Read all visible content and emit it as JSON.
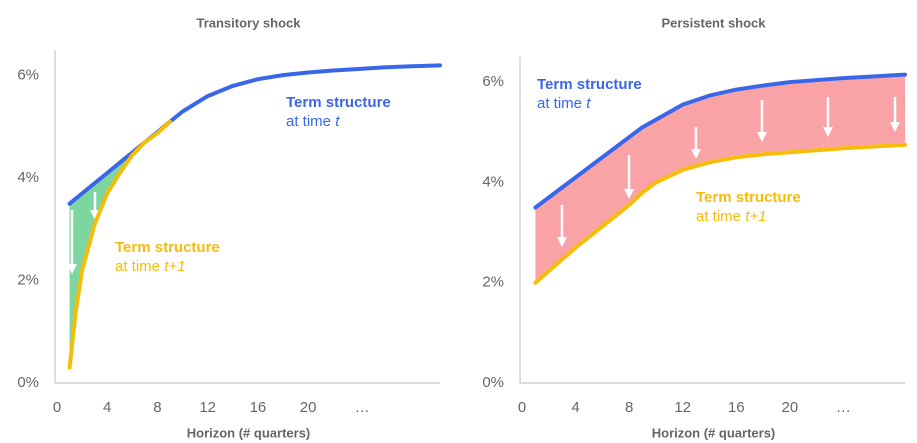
{
  "chart_data": [
    {
      "type": "line",
      "title": "Transitory shock",
      "x_label": "Horizon (# quarters)",
      "xlim": [
        0,
        30.5
      ],
      "xticks": [
        0,
        4,
        8,
        12,
        16,
        20,
        {
          "value": 24.3,
          "label": "…"
        }
      ],
      "ylim": [
        0,
        6.5
      ],
      "yticks": [
        {
          "value": 0,
          "label": "0%"
        },
        {
          "value": 2,
          "label": "2%"
        },
        {
          "value": 4,
          "label": "4%"
        },
        {
          "value": 6,
          "label": "6%"
        }
      ],
      "fill_color": "#7dd6a0",
      "series": [
        {
          "name": "Term structure",
          "note": "at time ",
          "var": "t",
          "color": "#3a66e8",
          "x": [
            1,
            2,
            3,
            4,
            5,
            6,
            7,
            8,
            9,
            10,
            12,
            14,
            16,
            18,
            20,
            22,
            24,
            26,
            28,
            30.5
          ],
          "values": [
            3.5,
            3.7,
            3.9,
            4.1,
            4.3,
            4.5,
            4.7,
            4.9,
            5.1,
            5.3,
            5.6,
            5.8,
            5.93,
            6.01,
            6.06,
            6.1,
            6.13,
            6.16,
            6.18,
            6.2
          ]
        },
        {
          "name": "Term structure",
          "note": "at time ",
          "var": "t+1",
          "color": "#f5bd0a",
          "x": [
            1,
            1.5,
            2,
            3,
            4,
            5,
            6,
            7,
            8,
            9
          ],
          "values": [
            0.3,
            1.4,
            2.2,
            3.1,
            3.7,
            4.1,
            4.45,
            4.7,
            4.88,
            5.1
          ]
        }
      ]
    },
    {
      "type": "line",
      "title": "Persistent shock",
      "x_label": "Horizon (# quarters)",
      "xlim": [
        0,
        28.6
      ],
      "xticks": [
        0,
        4,
        8,
        12,
        16,
        20,
        {
          "value": 24,
          "label": "…"
        }
      ],
      "ylim": [
        0,
        6.5
      ],
      "yticks": [
        {
          "value": 0,
          "label": "0%"
        },
        {
          "value": 2,
          "label": "2%"
        },
        {
          "value": 4,
          "label": "4%"
        },
        {
          "value": 6,
          "label": "6%"
        }
      ],
      "fill_color": "#f9a3a6",
      "series": [
        {
          "name": "Term structure",
          "note": "at time ",
          "var": "t",
          "color": "#3a66e8",
          "x": [
            1,
            4,
            8,
            9,
            10,
            12,
            14,
            16,
            18,
            20,
            24,
            28.6
          ],
          "values": [
            3.5,
            4.1,
            4.9,
            5.1,
            5.25,
            5.55,
            5.73,
            5.85,
            5.93,
            6.0,
            6.08,
            6.15
          ]
        },
        {
          "name": "Term structure",
          "note": "at time ",
          "var": "t+1",
          "color": "#f5bd0a",
          "x": [
            1,
            4,
            8,
            9,
            10,
            12,
            14,
            16,
            18,
            20,
            24,
            28.6
          ],
          "values": [
            2.0,
            2.7,
            3.55,
            3.8,
            4.0,
            4.25,
            4.4,
            4.5,
            4.56,
            4.6,
            4.68,
            4.75
          ]
        }
      ]
    }
  ]
}
